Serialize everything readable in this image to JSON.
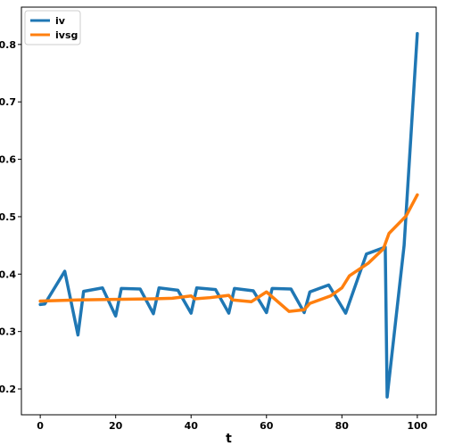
{
  "chart_data": {
    "type": "line",
    "xlabel": "t",
    "ylabel": "",
    "title": "",
    "xlim": [
      -5,
      105
    ],
    "ylim": [
      0.155,
      0.865
    ],
    "xticks": [
      0,
      20,
      40,
      60,
      80,
      100
    ],
    "yticks": [
      0.2,
      0.3,
      0.4,
      0.5,
      0.6,
      0.7,
      0.8
    ],
    "grid": false,
    "legend": "top-left",
    "series": [
      {
        "name": "iv",
        "color": "#1f77b4",
        "x": [
          0,
          1.2,
          6.5,
          10,
          11.5,
          16.5,
          20,
          21.5,
          26.5,
          30,
          31.5,
          36.5,
          40,
          41.5,
          46.5,
          50,
          51.5,
          56.5,
          60,
          61.5,
          66.5,
          70,
          71.5,
          76.5,
          81,
          86.5,
          91.5,
          92,
          96.5,
          100
        ],
        "y": [
          0.347,
          0.348,
          0.405,
          0.294,
          0.37,
          0.376,
          0.327,
          0.375,
          0.374,
          0.331,
          0.376,
          0.372,
          0.332,
          0.376,
          0.373,
          0.332,
          0.375,
          0.371,
          0.333,
          0.375,
          0.374,
          0.333,
          0.369,
          0.381,
          0.332,
          0.435,
          0.447,
          0.186,
          0.45,
          0.819
        ]
      },
      {
        "name": "ivsg",
        "color": "#ff7f0e",
        "x": [
          0,
          10,
          20,
          30,
          35,
          40,
          41,
          45,
          50,
          51,
          56,
          60,
          66,
          70,
          71.5,
          77,
          80,
          82,
          87,
          91,
          92.5,
          97,
          100
        ],
        "y": [
          0.353,
          0.355,
          0.356,
          0.357,
          0.358,
          0.362,
          0.357,
          0.359,
          0.363,
          0.355,
          0.352,
          0.369,
          0.335,
          0.338,
          0.349,
          0.362,
          0.376,
          0.397,
          0.419,
          0.444,
          0.471,
          0.501,
          0.538
        ]
      }
    ]
  }
}
